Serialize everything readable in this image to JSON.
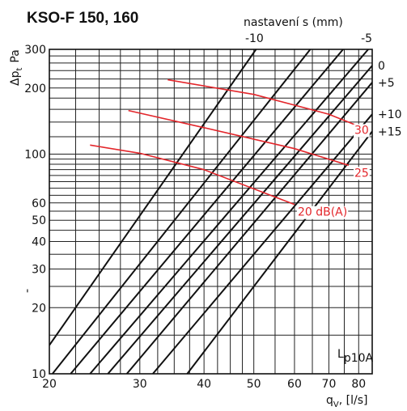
{
  "chart_data": {
    "type": "line",
    "title": "KSO-F 150, 160",
    "top_axis_label": "nastavení s (mm)",
    "ylabel": "Δpt Pa",
    "ylabel_main": "Δp",
    "ylabel_sub": "t",
    "ylabel_unit": "Pa",
    "xlabel": "qv, [l/s]",
    "xlabel_main": "q",
    "xlabel_sub": "V",
    "xlabel_unit": ", [l/s]",
    "x_scale": "log",
    "y_scale": "log",
    "xlim": [
      20,
      85
    ],
    "ylim": [
      10,
      300
    ],
    "x_ticks": [
      20,
      30,
      40,
      50,
      60,
      70,
      80
    ],
    "y_ticks": [
      10,
      20,
      30,
      40,
      50,
      60,
      100,
      200,
      300
    ],
    "y_tick_stray_mark": "'",
    "grid": true,
    "setting_lines": [
      {
        "label": "-10",
        "points": [
          [
            20.0,
            13.5
          ],
          [
            50.5,
            300
          ]
        ]
      },
      {
        "label": "",
        "points": [
          [
            20.0,
            9.6
          ],
          [
            64.4,
            300
          ]
        ]
      },
      {
        "label": "",
        "points": [
          [
            22.0,
            10
          ],
          [
            74.6,
            300
          ]
        ]
      },
      {
        "label": "-5",
        "points": [
          [
            24.0,
            10
          ],
          [
            83.5,
            300
          ]
        ]
      },
      {
        "label": "0",
        "points": [
          [
            26.0,
            10
          ],
          [
            85.0,
            253
          ]
        ]
      },
      {
        "label": "+5",
        "points": [
          [
            28.3,
            10
          ],
          [
            85.0,
            212
          ]
        ]
      },
      {
        "label": "+10",
        "points": [
          [
            31.8,
            10
          ],
          [
            85.0,
            152
          ]
        ]
      },
      {
        "label": "+15",
        "points": [
          [
            37.1,
            10
          ],
          [
            85.0,
            127
          ]
        ]
      }
    ],
    "sound_lines": {
      "label_prefix": "L",
      "label_sub": "p10A",
      "series": [
        {
          "name": "20 dB(A)",
          "points": [
            [
              24.0,
              110
            ],
            [
              30.0,
              101
            ],
            [
              40.0,
              85
            ],
            [
              60.0,
              59
            ]
          ]
        },
        {
          "name": "25",
          "points": [
            [
              28.5,
              158
            ],
            [
              40.0,
              132
            ],
            [
              60.0,
              106
            ],
            [
              76.5,
              89
            ]
          ]
        },
        {
          "name": "30",
          "points": [
            [
              34.0,
              218
            ],
            [
              50.0,
              187
            ],
            [
              70.0,
              152
            ],
            [
              84.0,
              128
            ]
          ]
        }
      ]
    },
    "colors": {
      "grid": "#222222",
      "setting_lines": "#111111",
      "sound_lines": "#e3262b"
    }
  }
}
